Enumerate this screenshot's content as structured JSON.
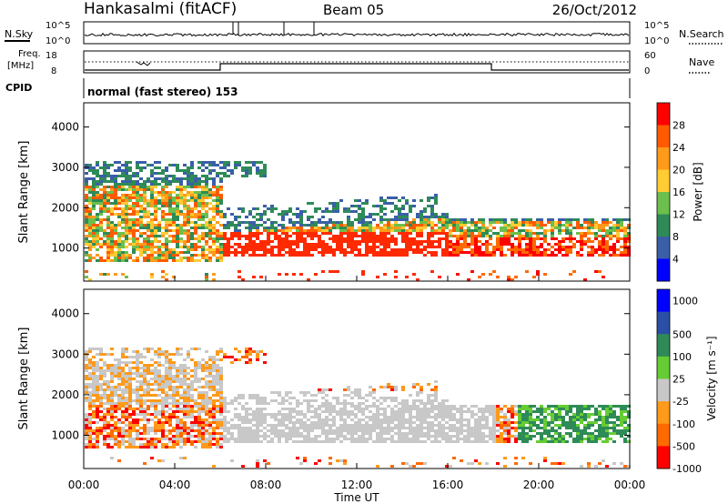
{
  "header": {
    "station": "Hankasalmi (fitACF)",
    "beam": "Beam 05",
    "date": "26/Oct/2012"
  },
  "top_panels": {
    "nsky_label": "N.Sky",
    "nsky_ticks": [
      "10^5",
      "10^0"
    ],
    "nsearch_label": "N.Search",
    "nsearch_ticks": [
      "10^5",
      "10^0"
    ],
    "freq_label": "Freq.",
    "freq_unit": "[MHz]",
    "freq_ticks": [
      "18",
      "8"
    ],
    "nave_label": "Nave",
    "nave_ticks": [
      "60",
      "0"
    ],
    "cpid_label": "CPID",
    "cpid_value": "normal (fast stereo) 153"
  },
  "chart_data": [
    {
      "type": "heatmap",
      "name": "power",
      "ylabel": "Slant Range [km]",
      "yticks": [
        "4000",
        "3000",
        "2000",
        "1000"
      ],
      "ylim": [
        180,
        4600
      ],
      "colorbar": {
        "label": "Power [dB]",
        "tick_labels": [
          "28",
          "24",
          "20",
          "16",
          "12",
          "8",
          "4"
        ],
        "colors": [
          "#ff0000",
          "#ff5a00",
          "#ff9a1a",
          "#ffcc33",
          "#6cbf4c",
          "#2e8b57",
          "#3a5fa8",
          "#0000ff"
        ]
      },
      "echo_bands": [
        {
          "t_start": 0.0,
          "t_end": 6.0,
          "r_low": 800,
          "r_high": 3200,
          "power_db": 14
        },
        {
          "t_start": 6.5,
          "t_end": 15.5,
          "r_low": 800,
          "r_high": 2100,
          "power_db": 24
        },
        {
          "t_start": 16.0,
          "t_end": 24.0,
          "r_low": 800,
          "r_high": 1800,
          "power_db": 26
        }
      ]
    },
    {
      "type": "heatmap",
      "name": "velocity",
      "ylabel": "Slant Range [km]",
      "yticks": [
        "4000",
        "3000",
        "2000",
        "1000"
      ],
      "ylim": [
        180,
        4600
      ],
      "xlabel": "Time UT",
      "xticks": [
        "00:00",
        "04:00",
        "08:00",
        "12:00",
        "16:00",
        "20:00",
        "00:00"
      ],
      "colorbar": {
        "label": "Velocity [m s⁻¹]",
        "tick_labels": [
          "1000",
          "500",
          "100",
          "25",
          "-25",
          "-100",
          "-500",
          "-1000"
        ],
        "colors": [
          "#0000ff",
          "#2a4fa6",
          "#2e8b57",
          "#66cc33",
          "#c8c8c8",
          "#ff9a1a",
          "#ff6a00",
          "#ff0000"
        ]
      }
    }
  ]
}
